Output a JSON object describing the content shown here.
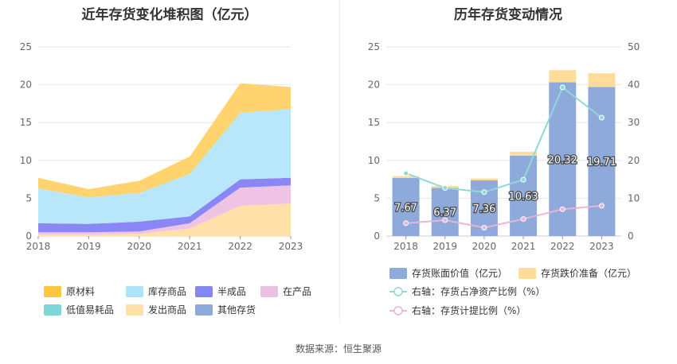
{
  "source_text": "数据来源：恒生聚源",
  "chart_data": [
    {
      "type": "area",
      "stacked": true,
      "title": "近年存货变化堆积图（亿元）",
      "x": [
        "2018",
        "2019",
        "2020",
        "2021",
        "2022",
        "2023"
      ],
      "y_ticks": [
        "0",
        "5",
        "10",
        "15",
        "20",
        "25"
      ],
      "ylim": [
        0,
        25
      ],
      "grid": true,
      "legend_position": "bottom",
      "series": [
        {
          "name": "其他存货",
          "color": "#8eaadb",
          "values": [
            0,
            0,
            0,
            0,
            0,
            0
          ]
        },
        {
          "name": "发出商品",
          "color": "#ffe0a8",
          "values": [
            0.2,
            0.2,
            0.3,
            1.0,
            4.0,
            4.3
          ]
        },
        {
          "name": "低值易耗品",
          "color": "#7ed6d6",
          "values": [
            0,
            0,
            0,
            0,
            0,
            0
          ]
        },
        {
          "name": "在产品",
          "color": "#eec3e4",
          "values": [
            0.3,
            0.3,
            0.3,
            0.7,
            2.4,
            2.4
          ]
        },
        {
          "name": "半成品",
          "color": "#8b86f5",
          "values": [
            1.2,
            1.1,
            1.3,
            0.9,
            1.1,
            1.0
          ]
        },
        {
          "name": "库存商品",
          "color": "#b8e6fa",
          "values": [
            4.6,
            3.5,
            3.8,
            5.6,
            8.8,
            9.1
          ]
        },
        {
          "name": "原材料",
          "color": "#ffd36e",
          "values": [
            1.4,
            1.1,
            1.6,
            2.3,
            3.9,
            2.9
          ]
        }
      ],
      "legend_order": [
        "原材料",
        "库存商品",
        "半成品",
        "在产品",
        "低值易耗品",
        "发出商品",
        "其他存货"
      ],
      "legend_colors": [
        "#ffc63f",
        "#aee3fb",
        "#8586f5",
        "#eabfe2",
        "#7ed6d6",
        "#ffe0a8",
        "#8eaadb"
      ]
    },
    {
      "type": "bar+line",
      "title": "历年存货变动情况",
      "x": [
        "2018",
        "2019",
        "2020",
        "2021",
        "2022",
        "2023"
      ],
      "y_left_ticks": [
        "0",
        "5",
        "10",
        "15",
        "20",
        "25"
      ],
      "y_right_ticks": [
        "0",
        "10",
        "20",
        "30",
        "40",
        "50"
      ],
      "ylim_left": [
        0,
        25
      ],
      "ylim_right": [
        0,
        50
      ],
      "grid": true,
      "legend_position": "bottom",
      "bars": [
        {
          "name": "存货账面价值（亿元）",
          "color": "#8eaadb",
          "values": [
            7.67,
            6.37,
            7.36,
            10.63,
            20.32,
            19.71
          ],
          "labels": [
            "7.67",
            "6.37",
            "7.36",
            "10.63",
            "20.32",
            "19.71"
          ]
        },
        {
          "name": "存货跌价准备（亿元）",
          "color": "#ffdd99",
          "values": [
            0.25,
            0.25,
            0.25,
            0.5,
            1.6,
            1.8
          ]
        }
      ],
      "lines": [
        {
          "name": "右轴：存货占净资产比例（%）",
          "color": "#8fd9d9",
          "values": [
            16.6,
            12.7,
            11.6,
            14.9,
            39.3,
            31.3
          ]
        },
        {
          "name": "右轴：存货计提比例（%）",
          "color": "#e8b4d8",
          "values": [
            3.4,
            4.2,
            2.2,
            4.5,
            7.1,
            8.0
          ]
        }
      ]
    }
  ]
}
